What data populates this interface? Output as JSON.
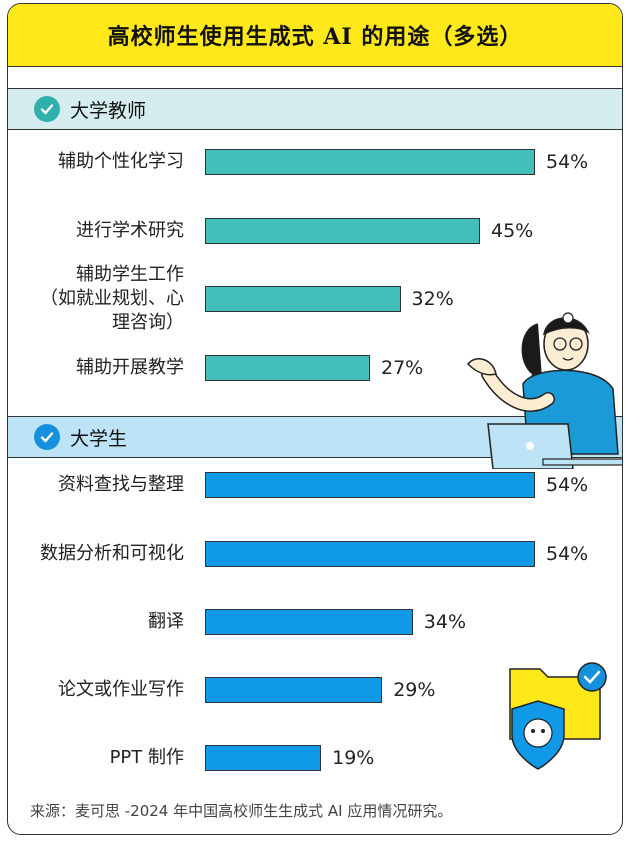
{
  "title": "高校师生使用生成式 AI 的用途（多选）",
  "chart_data": {
    "type": "bar",
    "groups": [
      {
        "name": "大学教师",
        "categories": [
          "辅助个性化学习",
          "进行学术研究",
          "辅助学生工作\n（如就业规划、心\n理咨询）",
          "辅助开展教学"
        ],
        "values": [
          54,
          45,
          32,
          27
        ],
        "value_labels": [
          "54%",
          "45%",
          "32%",
          "27%"
        ],
        "color": "#42bfbb"
      },
      {
        "name": "大学生",
        "categories": [
          "资料查找与整理",
          "数据分析和可视化",
          "翻译",
          "论文或作业写作",
          "PPT 制作"
        ],
        "values": [
          54,
          54,
          34,
          29,
          19
        ],
        "value_labels": [
          "54%",
          "54%",
          "34%",
          "29%",
          "19%"
        ],
        "color": "#1099e6"
      }
    ],
    "unit": "%"
  },
  "source": "来源：麦可思 -2024 年中国高校师生生成式 AI 应用情况研究。",
  "icons": [
    "check-circle-icon",
    "teacher-laptop-illustration",
    "folder-ai-shield-illustration"
  ]
}
